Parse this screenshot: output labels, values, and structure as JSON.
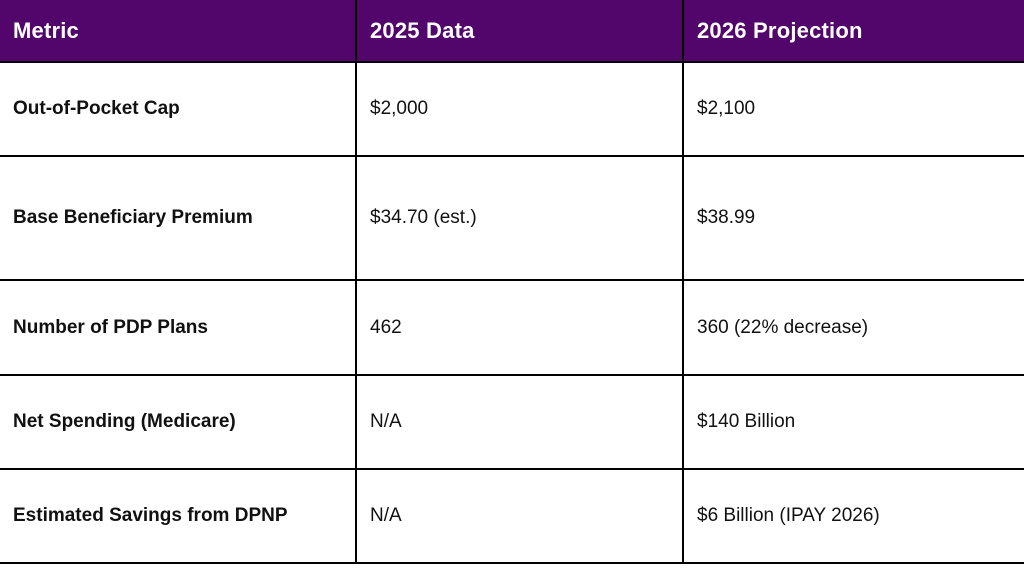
{
  "table": {
    "headers": [
      "Metric",
      "2025 Data",
      "2026 Projection"
    ],
    "rows": [
      [
        "Out-of-Pocket Cap",
        "$2,000",
        "$2,100"
      ],
      [
        "Base Beneficiary Premium",
        "$34.70 (est.)",
        "$38.99"
      ],
      [
        "Number of PDP Plans",
        "462",
        "360 (22% decrease)"
      ],
      [
        "Net Spending (Medicare)",
        "N/A",
        "$140 Billion"
      ],
      [
        "Estimated Savings from DPNP",
        "N/A",
        "$6 Billion (IPAY 2026)"
      ]
    ]
  },
  "colors": {
    "header_background": "#52056a",
    "header_text": "#ffffff",
    "border": "#000000"
  }
}
